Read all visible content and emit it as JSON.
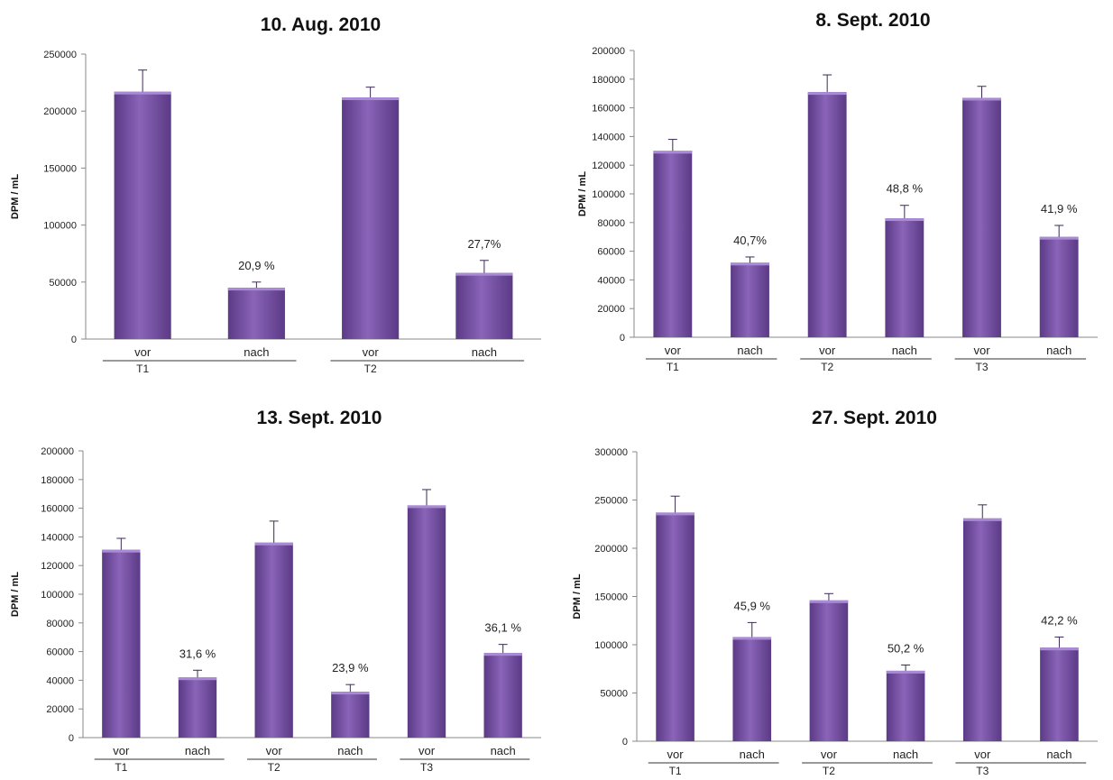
{
  "chart_data": [
    {
      "type": "bar",
      "title": "10. Aug. 2010",
      "ylabel": "DPM / mL",
      "ylim": [
        0,
        250000
      ],
      "yticks": [
        0,
        50000,
        100000,
        150000,
        200000,
        250000
      ],
      "groups": [
        {
          "name": "T1",
          "bars": [
            {
              "label": "vor",
              "value": 217000,
              "error": 19000,
              "annotation": ""
            },
            {
              "label": "nach",
              "value": 45000,
              "error": 5000,
              "annotation": "20,9 %"
            }
          ]
        },
        {
          "name": "T2",
          "bars": [
            {
              "label": "vor",
              "value": 212000,
              "error": 9000,
              "annotation": ""
            },
            {
              "label": "nach",
              "value": 58000,
              "error": 11000,
              "annotation": "27,7%"
            }
          ]
        }
      ],
      "colors": {
        "bar": "#8a64b8",
        "bar_dark": "#5b3a86",
        "error": "#3a2a55",
        "axis": "#888888"
      },
      "grid": false
    },
    {
      "type": "bar",
      "title": "8. Sept. 2010",
      "ylabel": "DPM / mL",
      "ylim": [
        0,
        200000
      ],
      "yticks": [
        0,
        20000,
        40000,
        60000,
        80000,
        100000,
        120000,
        140000,
        160000,
        180000,
        200000
      ],
      "groups": [
        {
          "name": "T1",
          "bars": [
            {
              "label": "vor",
              "value": 130000,
              "error": 8000,
              "annotation": ""
            },
            {
              "label": "nach",
              "value": 52000,
              "error": 4000,
              "annotation": "40,7%"
            }
          ]
        },
        {
          "name": "T2",
          "bars": [
            {
              "label": "vor",
              "value": 171000,
              "error": 12000,
              "annotation": ""
            },
            {
              "label": "nach",
              "value": 83000,
              "error": 9000,
              "annotation": "48,8 %"
            }
          ]
        },
        {
          "name": "T3",
          "bars": [
            {
              "label": "vor",
              "value": 167000,
              "error": 8000,
              "annotation": ""
            },
            {
              "label": "nach",
              "value": 70000,
              "error": 8000,
              "annotation": "41,9 %"
            }
          ]
        }
      ],
      "colors": {
        "bar": "#8a64b8",
        "bar_dark": "#5b3a86",
        "error": "#3a2a55",
        "axis": "#888888"
      },
      "grid": false
    },
    {
      "type": "bar",
      "title": "13. Sept. 2010",
      "ylabel": "DPM / mL",
      "ylim": [
        0,
        200000
      ],
      "yticks": [
        0,
        20000,
        40000,
        60000,
        80000,
        100000,
        120000,
        140000,
        160000,
        180000,
        200000
      ],
      "groups": [
        {
          "name": "T1",
          "bars": [
            {
              "label": "vor",
              "value": 131000,
              "error": 8000,
              "annotation": ""
            },
            {
              "label": "nach",
              "value": 42000,
              "error": 5000,
              "annotation": "31,6 %"
            }
          ]
        },
        {
          "name": "T2",
          "bars": [
            {
              "label": "vor",
              "value": 136000,
              "error": 15000,
              "annotation": ""
            },
            {
              "label": "nach",
              "value": 32000,
              "error": 5000,
              "annotation": "23,9 %"
            }
          ]
        },
        {
          "name": "T3",
          "bars": [
            {
              "label": "vor",
              "value": 162000,
              "error": 11000,
              "annotation": ""
            },
            {
              "label": "nach",
              "value": 59000,
              "error": 6000,
              "annotation": "36,1 %"
            }
          ]
        }
      ],
      "colors": {
        "bar": "#8a64b8",
        "bar_dark": "#5b3a86",
        "error": "#3a2a55",
        "axis": "#888888"
      },
      "grid": false
    },
    {
      "type": "bar",
      "title": "27. Sept. 2010",
      "ylabel": "DPM / mL",
      "ylim": [
        0,
        300000
      ],
      "yticks": [
        0,
        50000,
        100000,
        150000,
        200000,
        250000,
        300000
      ],
      "groups": [
        {
          "name": "T1",
          "bars": [
            {
              "label": "vor",
              "value": 237000,
              "error": 17000,
              "annotation": ""
            },
            {
              "label": "nach",
              "value": 108000,
              "error": 15000,
              "annotation": "45,9 %"
            }
          ]
        },
        {
          "name": "T2",
          "bars": [
            {
              "label": "vor",
              "value": 146000,
              "error": 7000,
              "annotation": ""
            },
            {
              "label": "nach",
              "value": 73000,
              "error": 6000,
              "annotation": "50,2 %"
            }
          ]
        },
        {
          "name": "T3",
          "bars": [
            {
              "label": "vor",
              "value": 231000,
              "error": 14000,
              "annotation": ""
            },
            {
              "label": "nach",
              "value": 97000,
              "error": 11000,
              "annotation": "42,2 %"
            }
          ]
        }
      ],
      "colors": {
        "bar": "#8a64b8",
        "bar_dark": "#5b3a86",
        "error": "#3a2a55",
        "axis": "#888888"
      },
      "grid": false
    }
  ]
}
